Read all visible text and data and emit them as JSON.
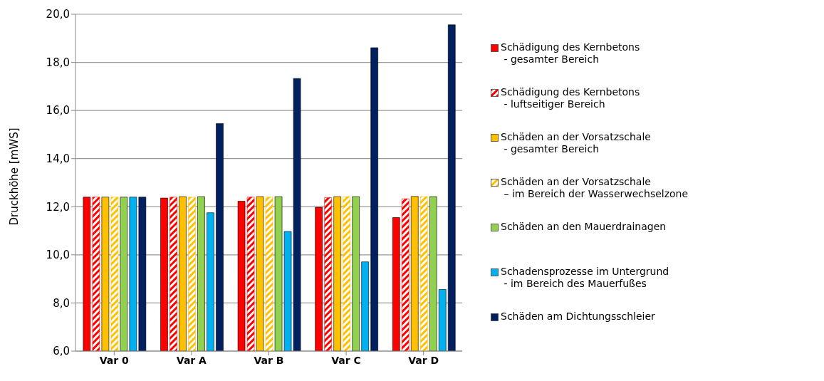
{
  "chart_data": {
    "type": "bar",
    "ylabel": "Druckhöhe [mWS]",
    "categories": [
      "Var 0",
      "Var A",
      "Var B",
      "Var C",
      "Var D"
    ],
    "series": [
      {
        "name": "Schädigung des Kernbetons\n - gesamter Bereich",
        "color": "#ff0000",
        "values": [
          12.4,
          12.36,
          12.23,
          11.98,
          11.55
        ]
      },
      {
        "name": "Schädigung des Kernbetons\n - luftseitiger Bereich",
        "color": "#ff0000",
        "values": [
          12.4,
          12.4,
          12.4,
          12.38,
          12.33
        ]
      },
      {
        "name": "Schäden an der Vorsatzschale\n - gesamter Bereich",
        "color": "#ffc000",
        "values": [
          12.4,
          12.42,
          12.42,
          12.42,
          12.43
        ]
      },
      {
        "name": "Schäden an der Vorsatzschale\n – im Bereich der Wasserwechselzone",
        "color": "#ffc000",
        "values": [
          12.4,
          12.4,
          12.4,
          12.42,
          12.42
        ]
      },
      {
        "name": "Schäden an den Mauerdrainagen",
        "color": "#92d050",
        "values": [
          12.4,
          12.42,
          12.42,
          12.42,
          12.42
        ]
      },
      {
        "name": "Schadensprozesse im Untergrund\n - im Bereich des Mauerfußes",
        "color": "#00b0f0",
        "values": [
          12.4,
          11.75,
          10.97,
          9.71,
          8.56
        ]
      },
      {
        "name": "Schäden am Dichtungsschleier",
        "color": "#002060",
        "values": [
          12.4,
          15.46,
          17.33,
          18.61,
          19.56
        ]
      }
    ],
    "ylim": [
      6,
      20
    ],
    "yticks": [
      {
        "value": 6,
        "label": "6,0"
      },
      {
        "value": 8,
        "label": "8,0"
      },
      {
        "value": 10,
        "label": "10,0"
      },
      {
        "value": 12,
        "label": "12,0"
      },
      {
        "value": 14,
        "label": "14,0"
      },
      {
        "value": 16,
        "label": "16,0"
      },
      {
        "value": 18,
        "label": "18,0"
      },
      {
        "value": 20,
        "label": "20,0"
      }
    ],
    "grid": "y",
    "legend": "right"
  }
}
